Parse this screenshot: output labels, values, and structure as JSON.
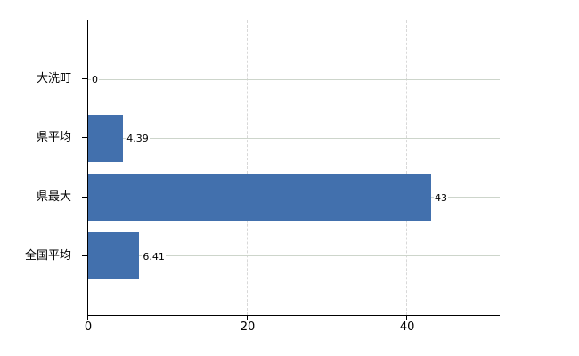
{
  "chart_data": {
    "type": "bar",
    "orientation": "horizontal",
    "title": "",
    "xlabel": "",
    "ylabel": "",
    "categories": [
      "大洗町",
      "県平均",
      "県最大",
      "全国平均"
    ],
    "values": [
      0,
      4.39,
      43,
      6.41
    ],
    "value_labels": [
      "0",
      "4.39",
      "43",
      "6.41"
    ],
    "x_ticks": [
      0,
      20,
      40
    ],
    "x_tick_labels": [
      "0",
      "20",
      "40"
    ],
    "xlim": [
      0,
      51.6
    ],
    "grid": true,
    "legend": false,
    "colors": {
      "bar": "#4270ad",
      "horizontal_gridline": "#cdd5cb",
      "vertical_gridline": "#d8d8d8",
      "axis": "#000000",
      "text": "#000000"
    }
  }
}
